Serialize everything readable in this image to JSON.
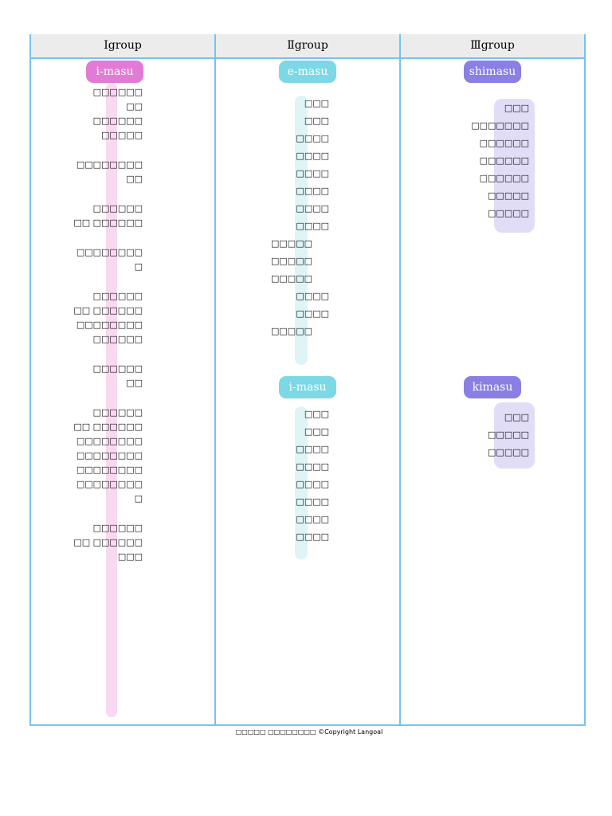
{
  "table": {
    "headers": [
      "Igroup",
      "Ⅱgroup",
      "Ⅲgroup"
    ],
    "columns": [
      {
        "sections": [
          {
            "label": "i-masu",
            "items": [
              [
                "□□□□□□",
                "□□",
                "□□□□□□",
                "□□□□□"
              ],
              [
                "□□□□□□□□",
                "□□"
              ],
              [
                "□□□□□□",
                "□□ □□□□□□"
              ],
              [
                "□□□□□□□□",
                "□"
              ],
              [
                "□□□□□□",
                "□□ □□□□□□",
                "□□□□□□□□",
                "□□□□□□"
              ],
              [
                "□□□□□□",
                "□□"
              ],
              [
                "□□□□□□",
                "□□ □□□□□□",
                "□□□□□□□□",
                "□□□□□□□□",
                "□□□□□□□□",
                "□□□□□□□□",
                "□"
              ],
              [
                "□□□□□□",
                "□□ □□□□□□",
                "□□□"
              ]
            ]
          }
        ]
      },
      {
        "sections": [
          {
            "label": "e-masu",
            "items": [
              "□□□",
              "□□□",
              "□□□□",
              "□□□□",
              "□□□□",
              "□□□□",
              "□□□□",
              "□□□□",
              "□□□□□",
              "□□□□□",
              "□□□□□",
              "□□□□",
              "□□□□",
              "□□□□□"
            ]
          },
          {
            "label": "i-masu",
            "items": [
              "□□□",
              "□□□",
              "□□□□",
              "□□□□",
              "□□□□",
              "□□□□",
              "□□□□",
              "□□□□"
            ]
          }
        ]
      },
      {
        "sections": [
          {
            "label": "shimasu",
            "items": [
              "□□□",
              "□□□□□□□",
              "□□□□□□",
              "□□□□□□",
              "□□□□□□",
              "□□□□□",
              "□□□□□"
            ]
          },
          {
            "label": "kimasu",
            "items": [
              "□□□",
              "□□□□□",
              "□□□□□"
            ]
          }
        ]
      }
    ]
  },
  "footer": "□□□□□ □□□□□□□□ ©Copyright Langoal"
}
